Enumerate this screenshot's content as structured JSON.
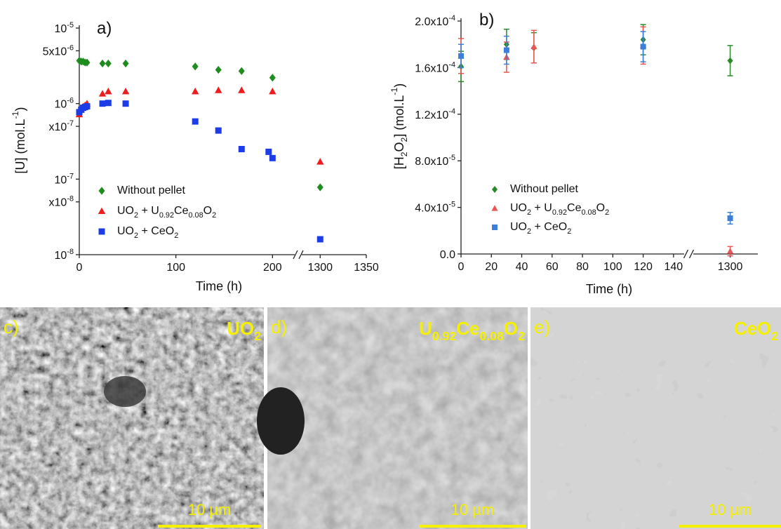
{
  "chart_data": [
    {
      "type": "scatter",
      "panel_label": "a)",
      "x_label": "Time (h)",
      "y_label": "[U] (mol.L-1)",
      "log_y": true,
      "ylim": [
        1e-08,
        1e-05
      ],
      "yticks": [
        {
          "value": 1e-05,
          "label": "10-5"
        },
        {
          "value": 5e-06,
          "label": "5x10-6"
        },
        {
          "value": 1e-06,
          "label": "10-6"
        },
        {
          "value": 5e-07,
          "label": "x10-7"
        },
        {
          "value": 1e-07,
          "label": "10-7"
        },
        {
          "value": 5e-08,
          "label": "x10-8"
        },
        {
          "value": 1e-08,
          "label": "10-8"
        }
      ],
      "x_segments": [
        {
          "xlim": [
            0,
            223
          ],
          "xticks": [
            0,
            100,
            200
          ]
        },
        {
          "xlim": [
            1280,
            1350
          ],
          "xticks": [
            1300,
            1350
          ]
        }
      ],
      "series": [
        {
          "name": "Without pellet",
          "color": "#1e8c1e",
          "marker": "diamond",
          "x": [
            0,
            2,
            4,
            6,
            8,
            24,
            30,
            48,
            120,
            144,
            168,
            200,
            1300
          ],
          "values": [
            3.7e-06,
            3.6e-06,
            3.6e-06,
            3.5e-06,
            3.5e-06,
            3.4e-06,
            3.4e-06,
            3.4e-06,
            3.1e-06,
            2.8e-06,
            2.7e-06,
            2.2e-06,
            7.8e-08
          ]
        },
        {
          "name": "UO2 + U0.92Ce0.08O2",
          "color": "#ee1c1c",
          "marker": "triangle",
          "x": [
            0,
            2,
            4,
            6,
            8,
            24,
            30,
            48,
            120,
            144,
            168,
            200,
            1300
          ],
          "values": [
            7.2e-07,
            8.3e-07,
            9.1e-07,
            9.5e-07,
            1e-06,
            1.35e-06,
            1.45e-06,
            1.45e-06,
            1.45e-06,
            1.5e-06,
            1.5e-06,
            1.45e-06,
            1.7e-07
          ]
        },
        {
          "name": "UO2 + CeO2",
          "color": "#1c3ce8",
          "marker": "square",
          "x": [
            0,
            2,
            4,
            6,
            8,
            24,
            30,
            48,
            120,
            144,
            168,
            196,
            200,
            1300
          ],
          "values": [
            7.7e-07,
            8.3e-07,
            8.8e-07,
            9e-07,
            9.2e-07,
            1e-06,
            1.02e-06,
            1e-06,
            5.8e-07,
            4.4e-07,
            2.5e-07,
            2.3e-07,
            1.9e-07,
            1.6e-08
          ]
        }
      ]
    },
    {
      "type": "scatter",
      "panel_label": "b)",
      "x_label": "Time (h)",
      "y_label": "[H2O2] (mol.L-1)",
      "log_y": false,
      "ylim": [
        0,
        0.0002
      ],
      "yticks": [
        {
          "value": 0,
          "label": "0.0"
        },
        {
          "value": 4e-05,
          "label": "4.0x10-5"
        },
        {
          "value": 8e-05,
          "label": "8.0x10-5"
        },
        {
          "value": 0.00012,
          "label": "1.2x10-4"
        },
        {
          "value": 0.00016,
          "label": "1.6x10-4"
        },
        {
          "value": 0.0002,
          "label": "2.0x10-4"
        }
      ],
      "x_segments": [
        {
          "xlim": [
            0,
            147
          ],
          "xticks": [
            0,
            20,
            40,
            60,
            80,
            100,
            120,
            140
          ]
        },
        {
          "xlim": [
            1276,
            1318
          ],
          "xticks": [
            1300
          ]
        }
      ],
      "series": [
        {
          "name": "Without pellet",
          "color": "#2a8a2a",
          "marker": "diamond",
          "x": [
            0,
            30,
            48,
            120,
            1300
          ],
          "values": [
            0.000161,
            0.00018,
            0.000177,
            0.000184,
            0.000166
          ],
          "errors": [
            1.3e-05,
            1.3e-05,
            1.3e-05,
            1.3e-05,
            1.3e-05
          ]
        },
        {
          "name": "UO2 + U0.92Ce0.08O2",
          "color": "#ec5555",
          "marker": "triangle",
          "x": [
            0,
            30,
            48,
            120,
            1300
          ],
          "values": [
            0.00017,
            0.000169,
            0.000178,
            0.000179,
            2.4e-06
          ],
          "errors": [
            1.5e-05,
            1.3e-05,
            1.4e-05,
            1.6e-05,
            4e-06
          ]
        },
        {
          "name": "UO2 + CeO2",
          "color": "#3b7fd8",
          "marker": "square",
          "x": [
            0,
            30,
            120,
            1300
          ],
          "values": [
            0.00017,
            0.000175,
            0.000178,
            3.07e-05
          ],
          "errors": [
            1e-05,
            1.2e-05,
            1.3e-05,
            5e-06
          ]
        }
      ]
    }
  ],
  "panels": [
    {
      "label": "c)",
      "material": "UO2",
      "scale": "10 µm"
    },
    {
      "label": "d)",
      "material": "U0.92Ce0.08O2",
      "scale": "10 µm"
    },
    {
      "label": "e)",
      "material": "CeO2",
      "scale": "10 µm"
    }
  ]
}
